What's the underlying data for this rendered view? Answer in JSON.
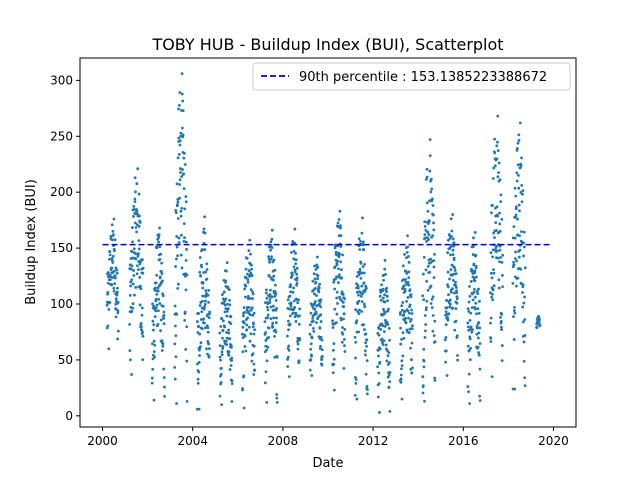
{
  "chart_data": {
    "type": "scatter",
    "title": "TOBY HUB - Buildup Index (BUI), Scatterplot",
    "xlabel": "Date",
    "ylabel": "Buildup Index (BUI)",
    "xlim": [
      2000.0,
      2020.0
    ],
    "ylim": [
      -10,
      320
    ],
    "x_ticks": [
      2000,
      2004,
      2008,
      2012,
      2016,
      2020
    ],
    "x_tick_labels": [
      "2000",
      "2004",
      "2008",
      "2012",
      "2016",
      "2020"
    ],
    "y_ticks": [
      0,
      50,
      100,
      150,
      200,
      250,
      300
    ],
    "y_tick_labels": [
      "0",
      "50",
      "100",
      "150",
      "200",
      "250",
      "300"
    ],
    "grid": false,
    "legend": {
      "position": "top-right",
      "entries": [
        "90th percentile : 153.1385223388672"
      ]
    },
    "reference_line": {
      "label": "90th percentile : 153.1385223388672",
      "value": 153.1385223388672,
      "style": "dashed",
      "color": "#0000cc"
    },
    "point_color": "#1f77b4",
    "series": [
      {
        "clusters": [
          {
            "x": [
              2000.2,
              2000.7
            ],
            "y": [
              60,
              176
            ]
          },
          {
            "x": [
              2001.2,
              2001.8
            ],
            "y": [
              37,
              221
            ]
          },
          {
            "x": [
              2002.2,
              2002.75
            ],
            "y": [
              14,
              168
            ]
          },
          {
            "x": [
              2003.2,
              2003.75
            ],
            "y": [
              11,
              306
            ]
          },
          {
            "x": [
              2004.2,
              2004.75
            ],
            "y": [
              6,
              178
            ]
          },
          {
            "x": [
              2005.2,
              2005.75
            ],
            "y": [
              10,
              137
            ]
          },
          {
            "x": [
              2006.2,
              2006.75
            ],
            "y": [
              7,
              157
            ]
          },
          {
            "x": [
              2007.2,
              2007.75
            ],
            "y": [
              12,
              166
            ]
          },
          {
            "x": [
              2008.2,
              2008.75
            ],
            "y": [
              35,
              167
            ]
          },
          {
            "x": [
              2009.2,
              2009.75
            ],
            "y": [
              36,
              142
            ]
          },
          {
            "x": [
              2010.2,
              2010.75
            ],
            "y": [
              23,
              183
            ]
          },
          {
            "x": [
              2011.2,
              2011.75
            ],
            "y": [
              15,
              177
            ]
          },
          {
            "x": [
              2012.2,
              2012.75
            ],
            "y": [
              3,
              139
            ]
          },
          {
            "x": [
              2013.2,
              2013.75
            ],
            "y": [
              15,
              161
            ]
          },
          {
            "x": [
              2014.2,
              2014.75
            ],
            "y": [
              13,
              247
            ]
          },
          {
            "x": [
              2015.2,
              2015.75
            ],
            "y": [
              36,
              180
            ]
          },
          {
            "x": [
              2016.2,
              2016.75
            ],
            "y": [
              11,
              164
            ]
          },
          {
            "x": [
              2017.2,
              2017.75
            ],
            "y": [
              35,
              268
            ]
          },
          {
            "x": [
              2018.2,
              2018.75
            ],
            "y": [
              24,
              262
            ]
          },
          {
            "x": [
              2019.25,
              2019.4
            ],
            "y": [
              79,
              89
            ]
          }
        ]
      }
    ]
  }
}
